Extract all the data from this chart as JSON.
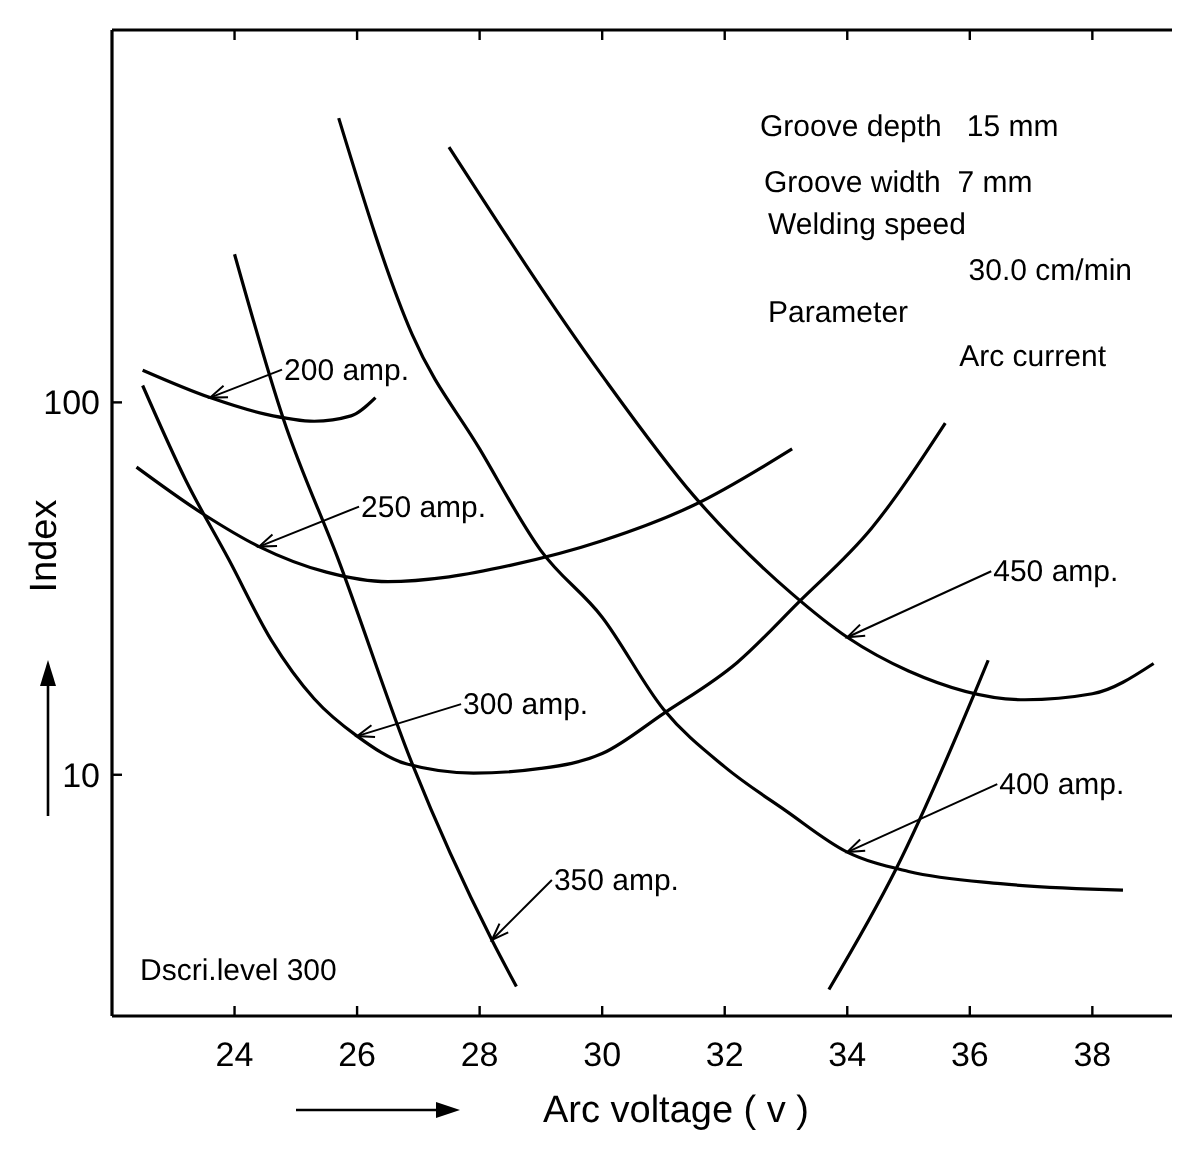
{
  "chart_data": {
    "type": "line",
    "xlabel": "Arc voltage ( v )",
    "ylabel": "Index",
    "log": "y",
    "xlim": [
      22,
      39.3
    ],
    "xticks": [
      24,
      26,
      28,
      30,
      32,
      34,
      36,
      38
    ],
    "ylim": [
      2.25,
      1000
    ],
    "yticks": [
      10,
      100
    ],
    "grid": false,
    "marker": "none",
    "line_style": "solid",
    "series": [
      {
        "color": "#000000",
        "x": [
          22.5,
          23.6,
          24.5,
          25.3,
          25.9,
          26.3
        ],
        "values": [
          122,
          103,
          93,
          89,
          92,
          103
        ]
      },
      {
        "color": "#000000",
        "x": [
          22.4,
          23.5,
          24.4,
          25.5,
          26.5,
          27.5,
          28.5,
          30,
          31.5,
          33.1
        ],
        "values": [
          67,
          50,
          41,
          35,
          33,
          34,
          36.5,
          42.5,
          53,
          75
        ]
      },
      {
        "color": "#000000",
        "x": [
          22.5,
          23.2,
          23.9,
          24.6,
          25.3,
          26,
          26.8,
          27.9,
          29,
          30,
          31,
          32.2,
          33.2,
          34.4,
          35.6
        ],
        "values": [
          111,
          62,
          38,
          23,
          16,
          12.7,
          10.7,
          10.1,
          10.4,
          11.4,
          14.6,
          20,
          29,
          46,
          88
        ]
      },
      {
        "color": "#000000",
        "x": [
          24,
          24.8,
          25.7,
          26.9,
          28.2,
          28.6,
          31,
          33.7,
          34.8,
          36.1,
          36.3
        ],
        "values": [
          250,
          90,
          37.6,
          10.7,
          3.6,
          2.7,
          null,
          2.65,
          5.6,
          16.9,
          20.3
        ]
      },
      {
        "color": "#000000",
        "x": [
          25.7,
          26.9,
          28,
          29,
          30,
          31,
          32,
          33,
          34,
          35,
          36.5,
          38.5
        ],
        "values": [
          580,
          152,
          75,
          40,
          26.5,
          15,
          10.5,
          8,
          6.2,
          5.5,
          5.1,
          4.9
        ]
      },
      {
        "color": "#000000",
        "x": [
          27.5,
          30,
          31.5,
          33.1,
          34,
          35,
          36.9,
          38,
          39
        ],
        "values": [
          485,
          118,
          56,
          30.6,
          23.4,
          19,
          15.9,
          16.5,
          19.9
        ]
      }
    ],
    "annotations": [
      {
        "text": "200 amp.",
        "x": 23.6,
        "y": 103
      },
      {
        "text": "250 amp.",
        "x": 24.4,
        "y": 41
      },
      {
        "text": "300 amp.",
        "x": 26,
        "y": 12.7
      },
      {
        "text": "350 amp.",
        "x": 28.2,
        "y": 3.6
      },
      {
        "text": "400 amp.",
        "x": 34,
        "y": 6.2
      },
      {
        "text": "450 amp.",
        "x": 34,
        "y": 23.4
      },
      "Groove depth   15 mm",
      "Groove width  7 mm",
      "Welding speed",
      "30.0 cm/min",
      "Parameter",
      "Arc current",
      "Dscri.level 300"
    ]
  }
}
